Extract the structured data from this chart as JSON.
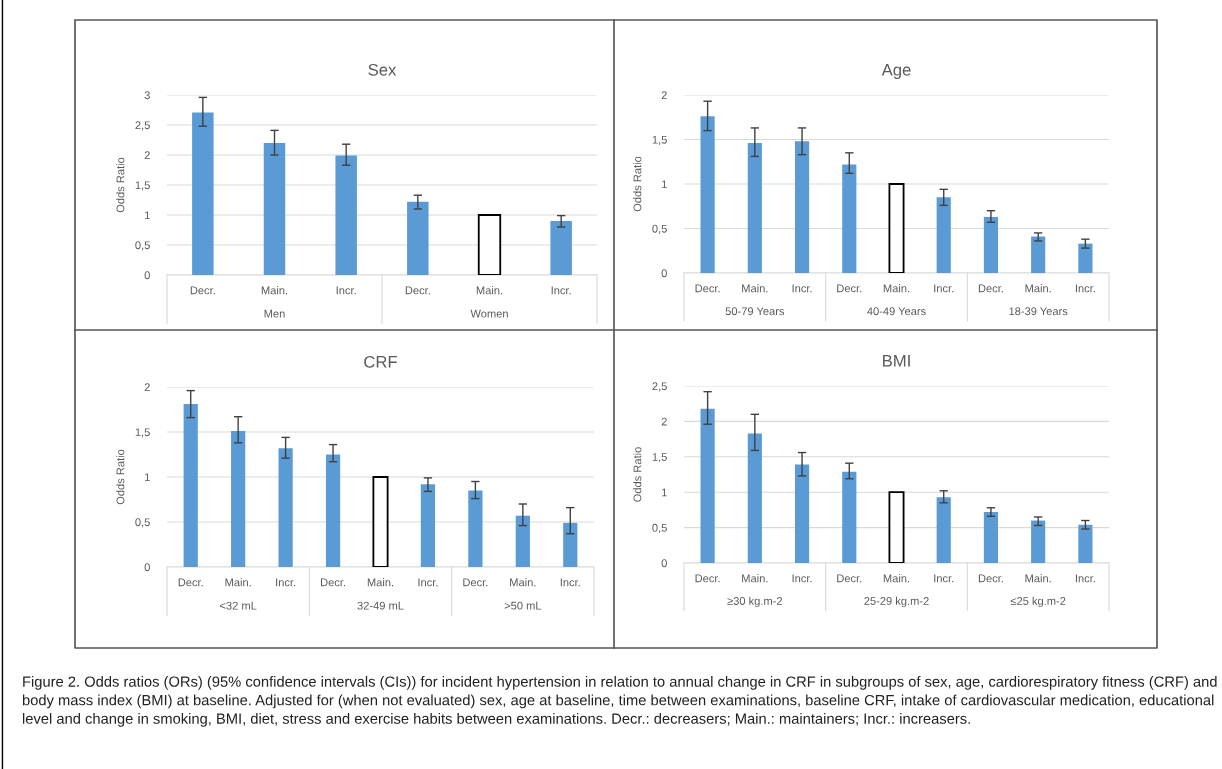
{
  "chart_data": [
    {
      "type": "bar",
      "title": "Sex",
      "ylabel": "Odds Ratio",
      "categories": [
        "Decr.",
        "Main.",
        "Incr.",
        "Decr.",
        "Main.",
        "Incr."
      ],
      "annotations": [
        "Men",
        "Women"
      ],
      "series": [
        {
          "colors": [
            "#5b9bd5",
            "#5b9bd5",
            "#5b9bd5",
            "#5b9bd5",
            "#ffffff",
            "#5b9bd5"
          ],
          "values": [
            2.71,
            2.2,
            1.99,
            1.22,
            1.0,
            0.9
          ],
          "errors": [
            [
              2.48,
              2.96
            ],
            [
              2.0,
              2.41
            ],
            [
              1.83,
              2.18
            ],
            [
              1.1,
              1.33
            ],
            null,
            [
              0.8,
              0.99
            ]
          ]
        }
      ],
      "ylim": [
        0,
        3
      ],
      "yticks": [
        0,
        {
          "value": 0.5,
          "label": "0,5"
        },
        1,
        {
          "value": 1.5,
          "label": "1,5"
        },
        2,
        {
          "value": 2.5,
          "label": "2,5"
        },
        3
      ],
      "grid": "y",
      "legend": false
    },
    {
      "type": "bar",
      "title": "Age",
      "ylabel": "Odds Ratio",
      "categories": [
        "Decr.",
        "Main.",
        "Incr.",
        "Decr.",
        "Main.",
        "Incr.",
        "Decr.",
        "Main.",
        "Incr."
      ],
      "annotations": [
        "50-79 Years",
        "40-49 Years",
        "18-39 Years"
      ],
      "series": [
        {
          "colors": [
            "#5b9bd5",
            "#5b9bd5",
            "#5b9bd5",
            "#5b9bd5",
            "#ffffff",
            "#5b9bd5",
            "#5b9bd5",
            "#5b9bd5",
            "#5b9bd5"
          ],
          "values": [
            1.76,
            1.46,
            1.48,
            1.22,
            1.0,
            0.85,
            0.63,
            0.41,
            0.33
          ],
          "errors": [
            [
              1.6,
              1.93
            ],
            [
              1.31,
              1.63
            ],
            [
              1.33,
              1.63
            ],
            [
              1.12,
              1.35
            ],
            null,
            [
              0.76,
              0.94
            ],
            [
              0.57,
              0.7
            ],
            [
              0.36,
              0.45
            ],
            [
              0.28,
              0.38
            ]
          ]
        }
      ],
      "ylim": [
        0,
        2
      ],
      "yticks": [
        0,
        {
          "value": 0.5,
          "label": "0,5"
        },
        1,
        {
          "value": 1.5,
          "label": "1,5"
        },
        2
      ],
      "grid": "y",
      "legend": false
    },
    {
      "type": "bar",
      "title": "CRF",
      "ylabel": "Odds Ratio",
      "categories": [
        "Decr.",
        "Main.",
        "Incr.",
        "Decr.",
        "Main.",
        "Incr.",
        "Decr.",
        "Main.",
        "Incr."
      ],
      "annotations": [
        "<32 mL",
        "32-49 mL",
        ">50 mL"
      ],
      "series": [
        {
          "colors": [
            "#5b9bd5",
            "#5b9bd5",
            "#5b9bd5",
            "#5b9bd5",
            "#ffffff",
            "#5b9bd5",
            "#5b9bd5",
            "#5b9bd5",
            "#5b9bd5"
          ],
          "values": [
            1.81,
            1.51,
            1.32,
            1.25,
            1.0,
            0.92,
            0.85,
            0.57,
            0.49
          ],
          "errors": [
            [
              1.66,
              1.96
            ],
            [
              1.38,
              1.67
            ],
            [
              1.21,
              1.44
            ],
            [
              1.17,
              1.36
            ],
            null,
            [
              0.84,
              0.99
            ],
            [
              0.76,
              0.95
            ],
            [
              0.46,
              0.7
            ],
            [
              0.37,
              0.66
            ]
          ]
        }
      ],
      "ylim": [
        0,
        2
      ],
      "yticks": [
        0,
        {
          "value": 0.5,
          "label": "0,5"
        },
        1,
        {
          "value": 1.5,
          "label": "1,5"
        },
        2
      ],
      "grid": "y",
      "legend": false
    },
    {
      "type": "bar",
      "title": "BMI",
      "ylabel": "Odds Ratio",
      "categories": [
        "Decr.",
        "Main.",
        "Incr.",
        "Decr.",
        "Main.",
        "Incr.",
        "Decr.",
        "Main.",
        "Incr."
      ],
      "annotations": [
        "≥30 kg.m-2",
        "25-29 kg.m-2",
        "≤25 kg.m-2"
      ],
      "series": [
        {
          "colors": [
            "#5b9bd5",
            "#5b9bd5",
            "#5b9bd5",
            "#5b9bd5",
            "#ffffff",
            "#5b9bd5",
            "#5b9bd5",
            "#5b9bd5",
            "#5b9bd5"
          ],
          "values": [
            2.18,
            1.83,
            1.39,
            1.29,
            1.0,
            0.93,
            0.72,
            0.6,
            0.54
          ],
          "errors": [
            [
              1.96,
              2.42
            ],
            [
              1.59,
              2.1
            ],
            [
              1.23,
              1.56
            ],
            [
              1.19,
              1.41
            ],
            null,
            [
              0.85,
              1.02
            ],
            [
              0.66,
              0.78
            ],
            [
              0.53,
              0.65
            ],
            [
              0.48,
              0.6
            ]
          ]
        }
      ],
      "ylim": [
        0,
        2.5
      ],
      "yticks": [
        0,
        {
          "value": 0.5,
          "label": "0,5"
        },
        1,
        {
          "value": 1.5,
          "label": "1,5"
        },
        2,
        {
          "value": 2.5,
          "label": "2,5"
        }
      ],
      "grid": "y",
      "legend": false
    },
    {
      "type": "other",
      "annotations": [
        "Figure 2. Odds ratios (ORs) (95% confidence intervals (CIs)) for incident hypertension in relation to annual change in CRF in subgroups of sex, age, cardiorespiratory fitness (CRF) and body mass index (BMI) at baseline. Adjusted for (when not evaluated) sex, age at baseline, time between examinations, baseline CRF, intake of cardiovascular medication, educational level and change in smoking, BMI, diet, stress and exercise habits between examinations. Decr.: decreasers; Main.: maintainers; Incr.: increasers."
      ]
    }
  ]
}
